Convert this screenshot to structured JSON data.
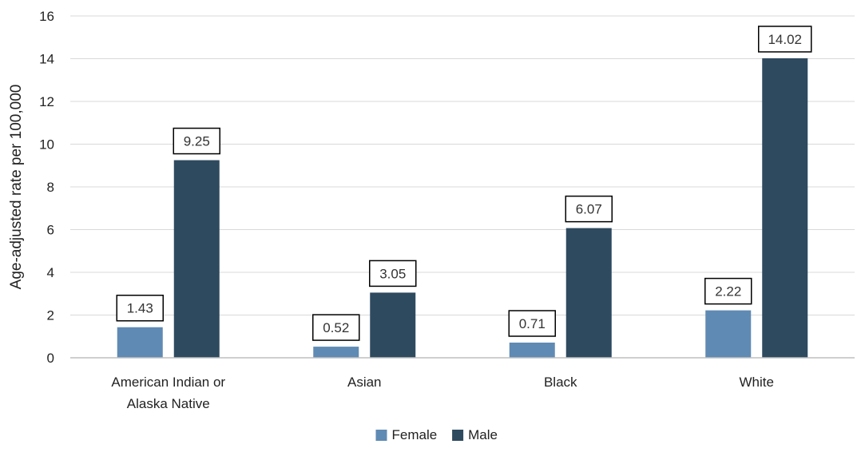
{
  "chart_data": {
    "type": "bar",
    "categories": [
      [
        "American Indian or",
        "Alaska Native"
      ],
      [
        "Asian"
      ],
      [
        "Black"
      ],
      [
        "White"
      ]
    ],
    "series": [
      {
        "name": "Female",
        "color": "#5f8ab3",
        "values": [
          1.43,
          0.52,
          0.71,
          2.22
        ],
        "labels": [
          "1.43",
          "0.52",
          "0.71",
          "2.22"
        ]
      },
      {
        "name": "Male",
        "color": "#2e4a5f",
        "values": [
          9.25,
          3.05,
          6.07,
          14.02
        ],
        "labels": [
          "9.25",
          "3.05",
          "6.07",
          "14.02"
        ]
      }
    ],
    "title": "",
    "xlabel": "",
    "ylabel": "Age-adjusted rate per 100,000",
    "ylim": [
      0,
      16
    ],
    "yticks": [
      0,
      2,
      4,
      6,
      8,
      10,
      12,
      14,
      16
    ],
    "ytick_labels": [
      "0",
      "2",
      "4",
      "6",
      "8",
      "10",
      "12",
      "14",
      "16"
    ],
    "grid": true,
    "legend_position": "bottom-center",
    "colors": {
      "grid": "#d9d9d9",
      "axis": "#bfbfbf",
      "label_box_border": "#000000"
    }
  }
}
